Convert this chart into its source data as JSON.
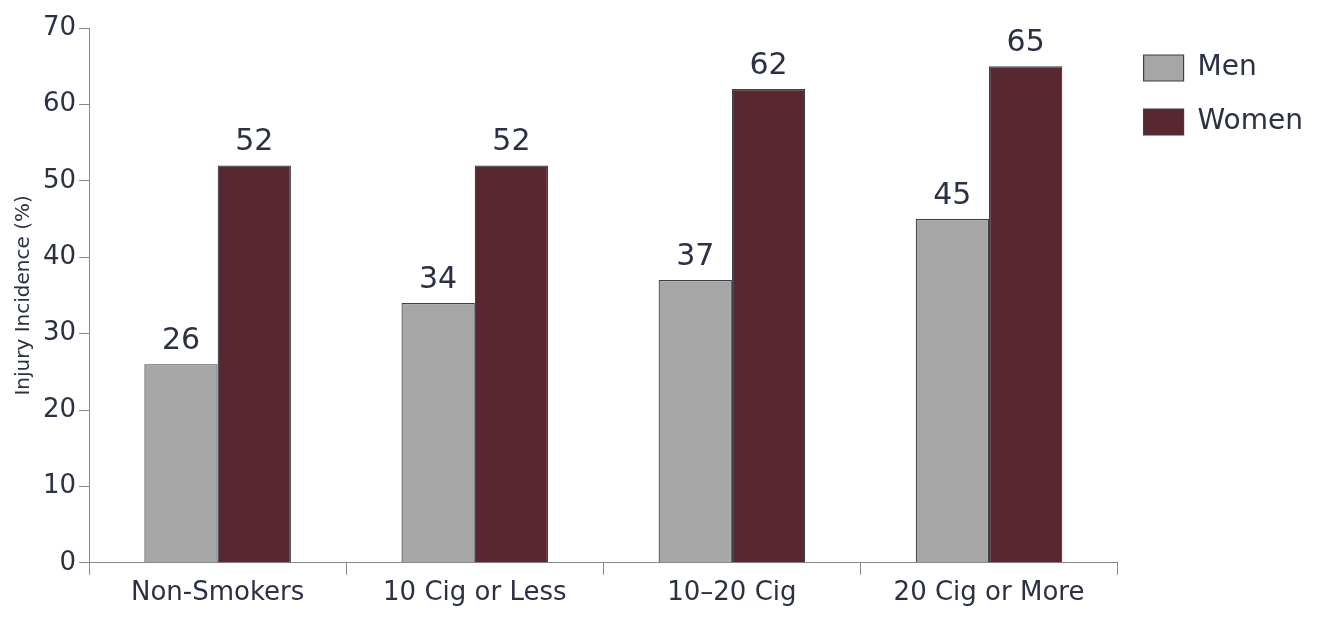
{
  "chart_data": {
    "type": "bar",
    "ylabel": "Injury Incidence (%)",
    "categories": [
      "Non-Smokers",
      "10 Cig or Less",
      "10–20 Cig",
      "20 Cig or More"
    ],
    "series": [
      {
        "name": "Men",
        "color": "#a6a6a6",
        "values": [
          26,
          34,
          37,
          45
        ]
      },
      {
        "name": "Women",
        "color": "#58272f",
        "values": [
          52,
          52,
          62,
          65
        ]
      }
    ],
    "ylim": [
      0,
      70
    ],
    "yticks": [
      0,
      10,
      20,
      30,
      40,
      50,
      60,
      70
    ],
    "grid": false,
    "legend": "top right",
    "data_labels": true
  }
}
